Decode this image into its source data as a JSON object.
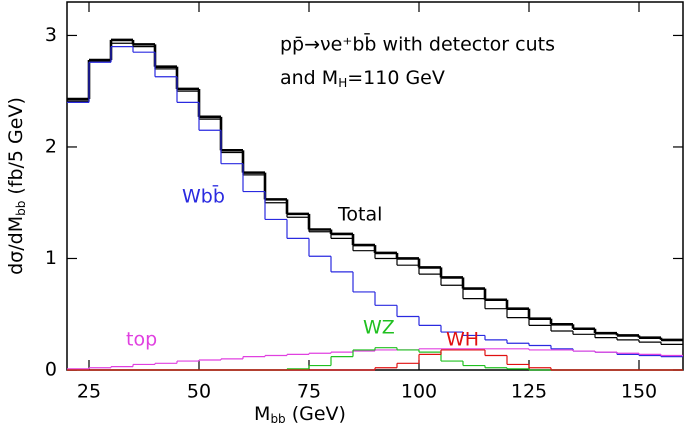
{
  "chart_data": {
    "type": "histogram",
    "annotations": [
      "pp̄→νe⁺bb̄ with detector cuts"
    ],
    "annotation_mh": [
      "and M",
      "H",
      "=110 GeV"
    ],
    "xlabel": [
      "M",
      "bb",
      " (GeV)"
    ],
    "ylabel": [
      "dσ/dM",
      "bb",
      " (fb/5 GeV)"
    ],
    "bins": [
      20,
      25,
      30,
      35,
      40,
      45,
      50,
      55,
      60,
      65,
      70,
      75,
      80,
      85,
      90,
      95,
      100,
      105,
      110,
      115,
      120,
      125,
      130,
      135,
      140,
      145,
      150,
      155,
      160
    ],
    "xlim": [
      20,
      160
    ],
    "ylim": [
      0,
      3.3
    ],
    "xticks": [
      25,
      50,
      75,
      100,
      125,
      150
    ],
    "yticks": [
      0,
      1,
      2,
      3
    ],
    "series": [
      {
        "name": "Total",
        "color": "#000000",
        "values": [
          2.43,
          2.78,
          2.96,
          2.92,
          2.72,
          2.52,
          2.27,
          1.97,
          1.77,
          1.53,
          1.4,
          1.26,
          1.22,
          1.12,
          1.05,
          1.0,
          0.92,
          0.83,
          0.73,
          0.63,
          0.55,
          0.46,
          0.41,
          0.37,
          0.33,
          0.31,
          0.29,
          0.27
        ]
      },
      {
        "color": "#000000",
        "values": [
          2.41,
          2.77,
          2.93,
          2.9,
          2.7,
          2.5,
          2.25,
          1.95,
          1.75,
          1.5,
          1.37,
          1.24,
          1.18,
          1.07,
          1.0,
          0.94,
          0.86,
          0.76,
          0.64,
          0.55,
          0.47,
          0.4,
          0.35,
          0.32,
          0.29,
          0.27,
          0.25,
          0.23
        ]
      },
      {
        "name": "Wbb̄",
        "color": "#2a2ae0",
        "values": [
          2.4,
          2.76,
          2.9,
          2.85,
          2.63,
          2.4,
          2.15,
          1.85,
          1.6,
          1.35,
          1.18,
          1.02,
          0.88,
          0.7,
          0.58,
          0.48,
          0.4,
          0.34,
          0.31,
          0.27,
          0.24,
          0.22,
          0.19,
          0.17,
          0.16,
          0.14,
          0.13,
          0.12
        ]
      },
      {
        "name": "top",
        "color": "#e040e0",
        "values": [
          0.01,
          0.02,
          0.03,
          0.05,
          0.06,
          0.08,
          0.09,
          0.1,
          0.12,
          0.13,
          0.14,
          0.15,
          0.16,
          0.17,
          0.18,
          0.18,
          0.19,
          0.19,
          0.19,
          0.19,
          0.19,
          0.18,
          0.18,
          0.17,
          0.16,
          0.15,
          0.14,
          0.13
        ]
      },
      {
        "name": "WZ",
        "color": "#20c020",
        "values": [
          0,
          0,
          0,
          0,
          0,
          0,
          0,
          0,
          0,
          0,
          0.01,
          0.04,
          0.12,
          0.18,
          0.2,
          0.18,
          0.16,
          0.08,
          0.04,
          0.02,
          0.01,
          0,
          0,
          0,
          0,
          0,
          0,
          0
        ]
      },
      {
        "name": "WH",
        "color": "#e01010",
        "values": [
          0,
          0,
          0,
          0,
          0,
          0,
          0,
          0,
          0,
          0,
          0,
          0,
          0,
          0,
          0.02,
          0.06,
          0.14,
          0.18,
          0.18,
          0.13,
          0.05,
          0.02,
          0,
          0,
          0,
          0,
          0,
          0
        ]
      }
    ]
  }
}
